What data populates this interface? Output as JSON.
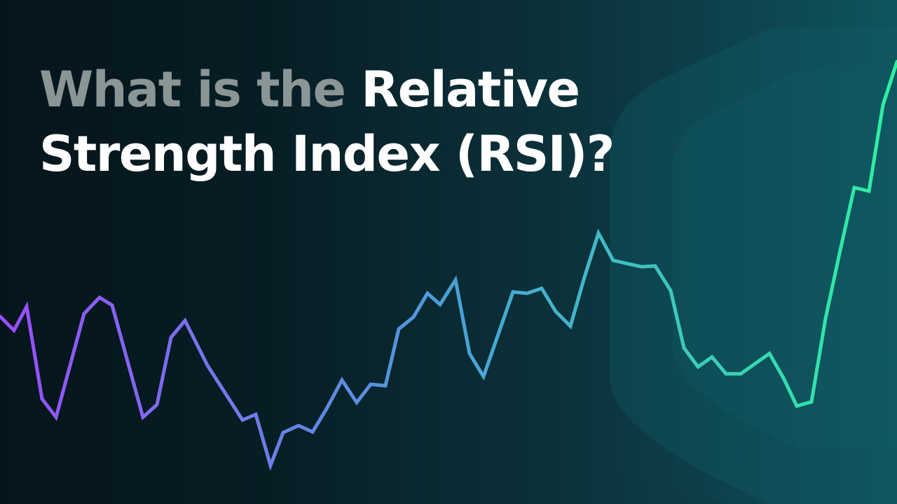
{
  "heading": {
    "prefix": "What is the ",
    "emphasis_line1": "Relative",
    "emphasis_line2": "Strength Index (RSI)?"
  },
  "colors": {
    "line_start": "#9b4dff",
    "line_mid": "#4aa0d8",
    "line_end": "#2ef0a0",
    "heading_prefix": "#8a9596",
    "heading": "#ffffff"
  }
}
